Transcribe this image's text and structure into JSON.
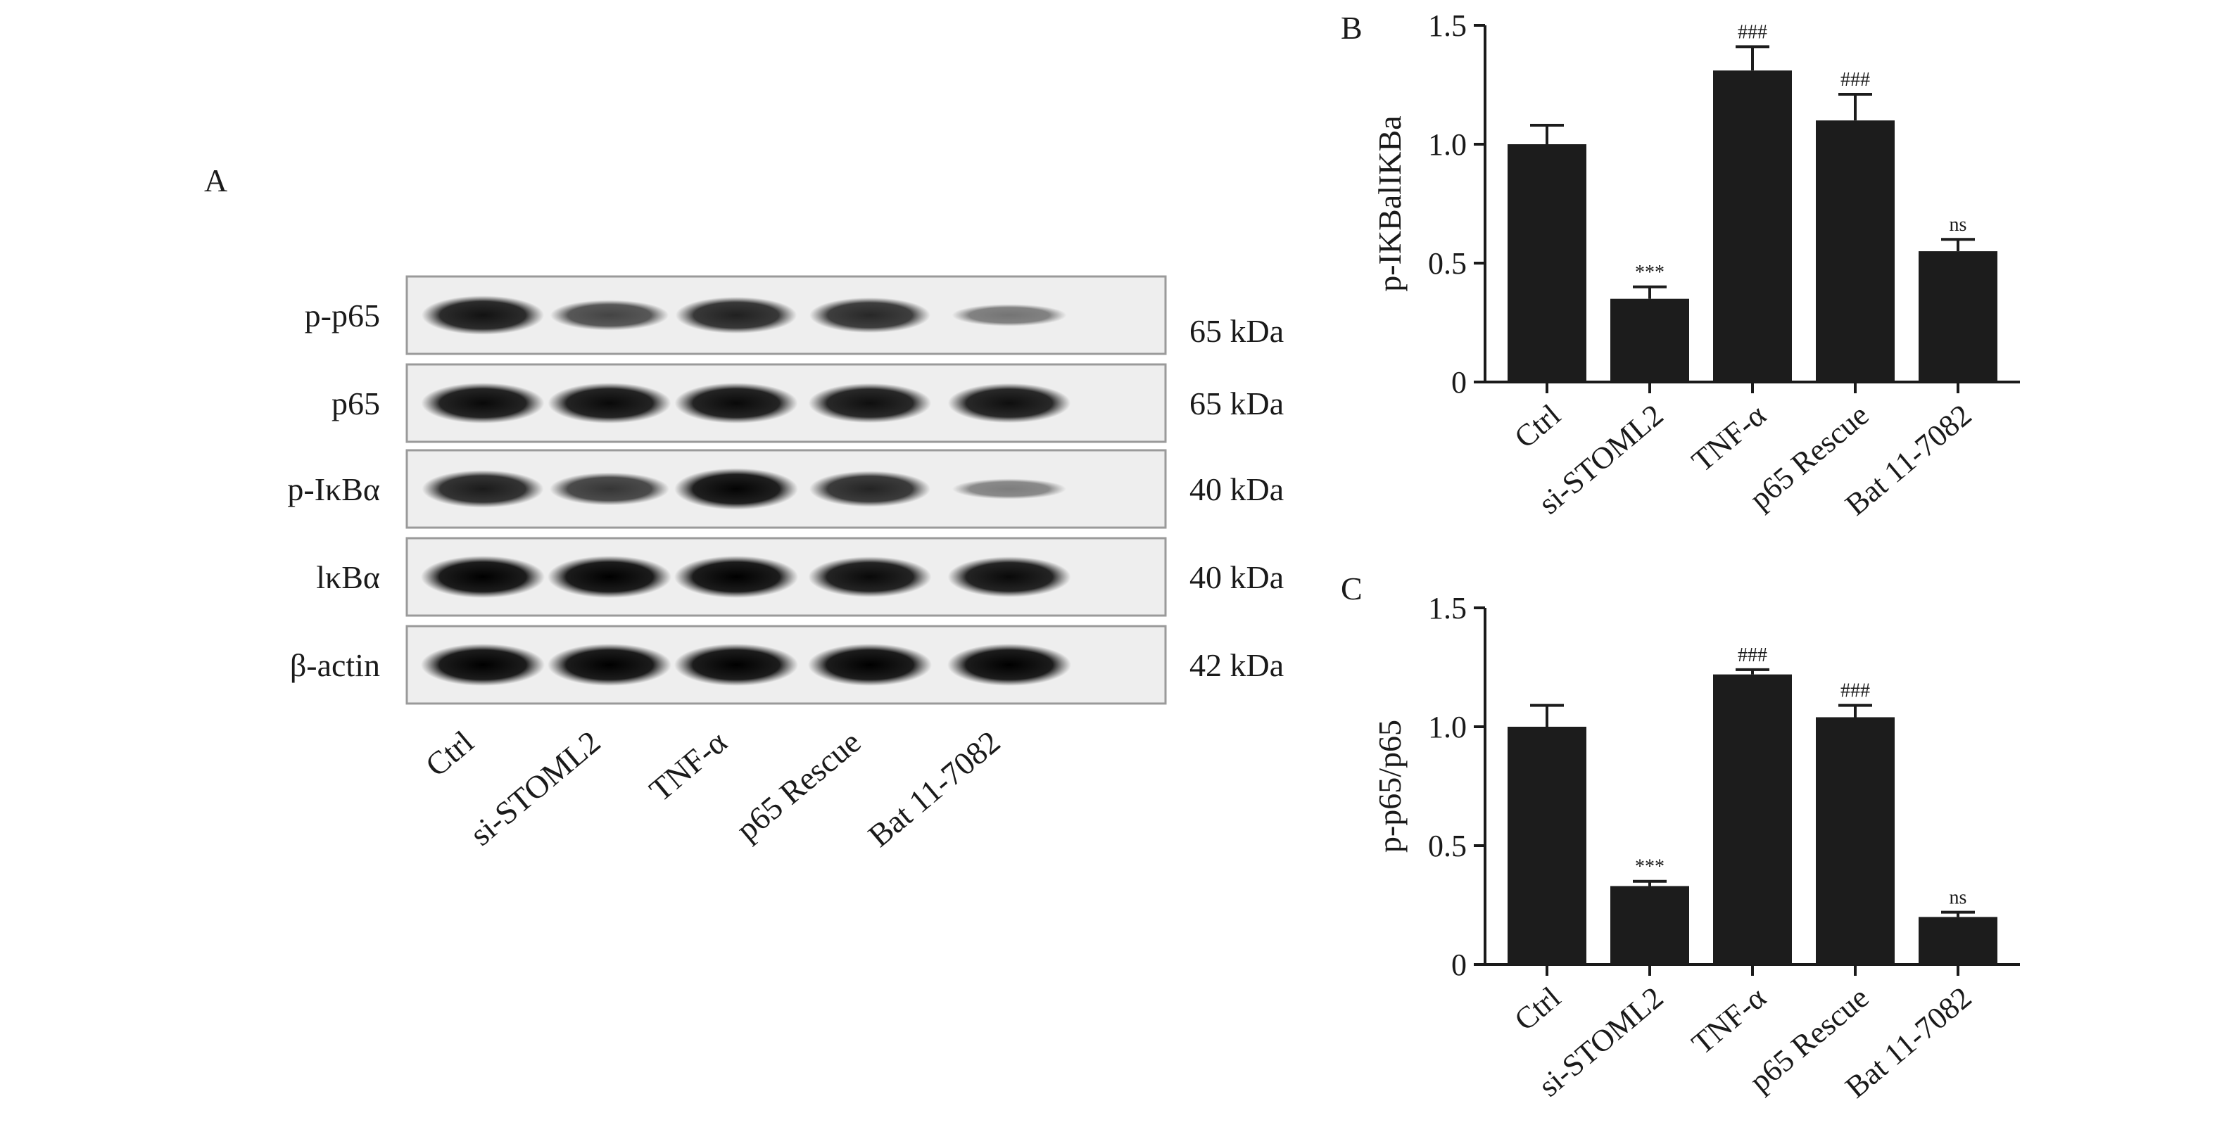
{
  "panels": {
    "a": "A",
    "b": "B",
    "c": "C"
  },
  "blot": {
    "rows": [
      {
        "label": "p-p65",
        "kda": "65 kDa",
        "intensity": [
          0.9,
          0.62,
          0.82,
          0.78,
          0.35
        ]
      },
      {
        "label": "p65",
        "kda": "65 kDa",
        "intensity": [
          0.95,
          0.95,
          0.95,
          0.92,
          0.92
        ]
      },
      {
        "label": "p-IκBα",
        "kda": "40 kDa",
        "intensity": [
          0.85,
          0.7,
          0.98,
          0.8,
          0.3
        ]
      },
      {
        "label": "lκBα",
        "kda": "40 kDa",
        "intensity": [
          1.0,
          1.0,
          1.0,
          0.95,
          0.95
        ]
      },
      {
        "label": "β-actin",
        "kda": "42 kDa",
        "intensity": [
          1.0,
          1.0,
          1.0,
          1.0,
          1.0
        ]
      }
    ],
    "lanes": [
      "Ctrl",
      "si-STOML2",
      "TNF-α",
      "p65 Rescue",
      "Bat 11-7082"
    ]
  },
  "chart_data": [
    {
      "type": "bar",
      "title": "",
      "xlabel": "",
      "ylabel": "p-IKBalIKBa",
      "ylim": [
        0,
        1.5
      ],
      "yticks": [
        "0",
        "0.5",
        "1.0",
        "1.5"
      ],
      "categories": [
        "Ctrl",
        "si-STOML2",
        "TNF-α",
        "p65 Rescue",
        "Bat 11-7082"
      ],
      "values": [
        1.0,
        0.35,
        1.31,
        1.1,
        0.55
      ],
      "errors": [
        0.08,
        0.05,
        0.1,
        0.11,
        0.05
      ],
      "annotations": [
        "",
        "***",
        "###",
        "###",
        "ns"
      ],
      "bar_color": "#1c1c1c"
    },
    {
      "type": "bar",
      "title": "",
      "xlabel": "",
      "ylabel": "p-p65/p65",
      "ylim": [
        0,
        1.5
      ],
      "yticks": [
        "0",
        "0.5",
        "1.0",
        "1.5"
      ],
      "categories": [
        "Ctrl",
        "si-STOML2",
        "TNF-α",
        "p65 Rescue",
        "Bat 11-7082"
      ],
      "values": [
        1.0,
        0.33,
        1.22,
        1.04,
        0.2
      ],
      "errors": [
        0.09,
        0.02,
        0.02,
        0.05,
        0.02
      ],
      "annotations": [
        "",
        "***",
        "###",
        "###",
        "ns"
      ],
      "bar_color": "#1c1c1c"
    }
  ]
}
